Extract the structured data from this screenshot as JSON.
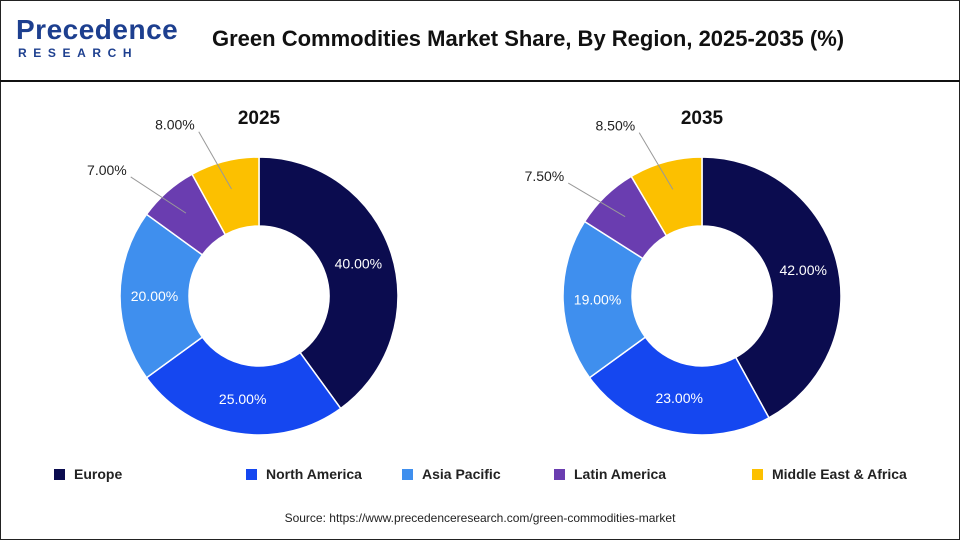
{
  "header": {
    "logo_main": "Precedence",
    "logo_sub": "RESEARCH",
    "title": "Green Commodities Market Share, By Region, 2025-2035 (%)"
  },
  "chart_data": [
    {
      "type": "pie",
      "subtype": "donut",
      "title": "2025",
      "categories": [
        "Europe",
        "North America",
        "Asia Pacific",
        "Latin America",
        "Middle East & Africa"
      ],
      "values": [
        40.0,
        25.0,
        20.0,
        7.0,
        8.0
      ],
      "labels": [
        "40.00%",
        "25.00%",
        "20.00%",
        "7.00%",
        "8.00%"
      ]
    },
    {
      "type": "pie",
      "subtype": "donut",
      "title": "2035",
      "categories": [
        "Europe",
        "North America",
        "Asia Pacific",
        "Latin America",
        "Middle East & Africa"
      ],
      "values": [
        42.0,
        23.0,
        19.0,
        7.5,
        8.5
      ],
      "labels": [
        "42.00%",
        "23.00%",
        "19.00%",
        "7.50%",
        "8.50%"
      ]
    }
  ],
  "colors": {
    "Europe": "#0b0c4f",
    "North America": "#1547f0",
    "Asia Pacific": "#3f8fee",
    "Latin America": "#6a3db0",
    "Middle East & Africa": "#fcc000"
  },
  "legend": [
    {
      "label": "Europe",
      "color": "#0b0c4f"
    },
    {
      "label": "North America",
      "color": "#1547f0"
    },
    {
      "label": "Asia Pacific",
      "color": "#3f8fee"
    },
    {
      "label": "Latin America",
      "color": "#6a3db0"
    },
    {
      "label": "Middle East & Africa",
      "color": "#fcc000"
    }
  ],
  "source": "Source: https://www.precedenceresearch.com/green-commodities-market"
}
